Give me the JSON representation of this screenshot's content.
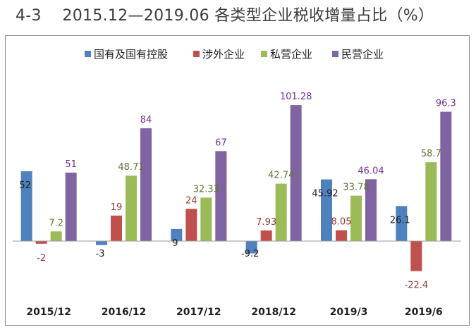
{
  "figure": {
    "title": "4-3　 2015.12—2019.06 各类型企业税收增量占比（%）"
  },
  "chart_data": {
    "type": "bar",
    "title": "4-3　 2015.12—2019.06 各类型企业税收增量占比（%）",
    "xlabel": "",
    "ylabel": "",
    "categories": [
      "2015/12",
      "2016/12",
      "2017/12",
      "2018/12",
      "2019/3",
      "2019/6"
    ],
    "ylim": [
      -28,
      112
    ],
    "grid": false,
    "legend_position": "top",
    "series": [
      {
        "name": "国有及国有控股",
        "color": "#4f81bd",
        "label_color": "#1f1f1f",
        "values": [
          52,
          -3,
          9,
          -9.2,
          45.92,
          26.1
        ],
        "labels": [
          "52",
          "-3",
          "9",
          "-9.2",
          "45.92",
          "26.1"
        ]
      },
      {
        "name": "涉外企业",
        "color": "#c0504d",
        "label_color": "#953735",
        "values": [
          -2,
          19,
          24,
          7.93,
          8.05,
          -22.4
        ],
        "labels": [
          "-2",
          "19",
          "24",
          "7.93",
          "8.05",
          "-22.4"
        ]
      },
      {
        "name": "私营企业",
        "color": "#9bbb59",
        "label_color": "#5f7530",
        "values": [
          7.2,
          48.71,
          32.33,
          42.74,
          33.78,
          58.7
        ],
        "labels": [
          "7.2",
          "48.71",
          "32.33",
          "42.74",
          "33.78",
          "58.7"
        ]
      },
      {
        "name": "民营企业",
        "color": "#8064a2",
        "label_color": "#7030a0",
        "values": [
          51,
          84,
          67,
          101.28,
          46.04,
          96.3
        ],
        "labels": [
          "51",
          "84",
          "67",
          "101.28",
          "46.04",
          "96.3"
        ]
      }
    ]
  }
}
